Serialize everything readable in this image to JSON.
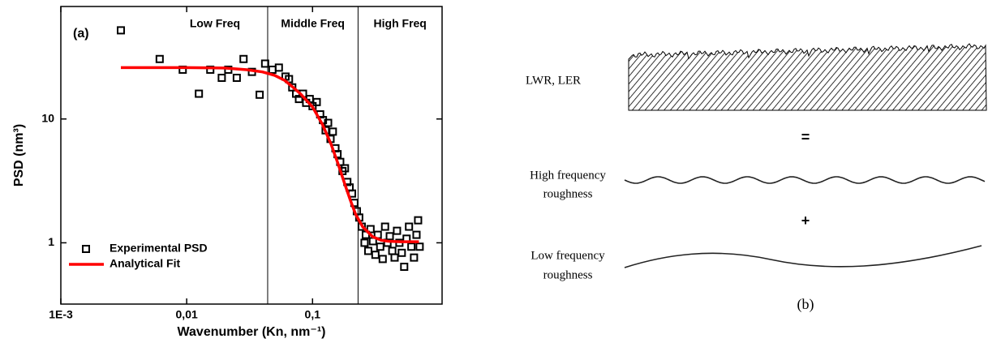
{
  "chart_data": {
    "type": "scatter",
    "panel_label": "(a)",
    "x_label": "Wavenumber (Kn, nm⁻¹)",
    "y_label": "PSD (nm³)",
    "xscale": "log",
    "yscale": "log",
    "xlim": [
      0.001,
      1.07
    ],
    "ylim": [
      0.32,
      81
    ],
    "xticks": [
      {
        "value": 0.001,
        "label": "1E-3"
      },
      {
        "value": 0.01,
        "label": "0,01"
      },
      {
        "value": 0.1,
        "label": "0,1"
      }
    ],
    "yticks": [
      1,
      10
    ],
    "region_boundaries": [
      0.044,
      0.23
    ],
    "region_labels": [
      "Low Freq",
      "Middle Freq",
      "High Freq"
    ],
    "legend": "lower left",
    "series": [
      {
        "name": "Experimental PSD",
        "type": "scatter",
        "color": "#000000",
        "x": [
          0.003,
          0.0061,
          0.0093,
          0.0125,
          0.0154,
          0.019,
          0.0214,
          0.025,
          0.0283,
          0.033,
          0.038,
          0.042,
          0.048,
          0.054,
          0.061,
          0.065,
          0.069,
          0.074,
          0.078,
          0.084,
          0.089,
          0.095,
          0.1,
          0.108,
          0.115,
          0.121,
          0.127,
          0.133,
          0.139,
          0.145,
          0.152,
          0.158,
          0.166,
          0.173,
          0.181,
          0.189,
          0.197,
          0.206,
          0.215,
          0.225,
          0.235,
          0.246,
          0.259,
          0.265,
          0.277,
          0.289,
          0.302,
          0.316,
          0.33,
          0.345,
          0.361,
          0.377,
          0.394,
          0.411,
          0.43,
          0.449,
          0.469,
          0.49,
          0.512,
          0.535,
          0.559,
          0.584,
          0.61,
          0.64,
          0.67,
          0.69,
          0.71
        ],
        "values": [
          52,
          30.5,
          25,
          16,
          25,
          21.5,
          25,
          21.5,
          30.5,
          24,
          15.7,
          28,
          25,
          26,
          22,
          21,
          18,
          16,
          14.5,
          16,
          13.5,
          14.5,
          12.7,
          13.7,
          10.9,
          9.8,
          8.1,
          9.3,
          6.9,
          7.9,
          5.8,
          5.2,
          4.5,
          3.8,
          4.0,
          3.1,
          2.8,
          2.5,
          2.1,
          1.8,
          1.6,
          1.35,
          1.0,
          1.16,
          0.86,
          1.29,
          1.03,
          0.8,
          1.16,
          0.93,
          0.74,
          1.35,
          1.0,
          1.13,
          0.86,
          0.76,
          1.25,
          1.0,
          0.83,
          0.64,
          1.08,
          1.35,
          0.93,
          0.76,
          1.16,
          1.52,
          0.93
        ]
      },
      {
        "name": "Analytical Fit",
        "type": "line",
        "color": "#ff0000",
        "x": [
          0.003,
          0.01,
          0.02,
          0.03,
          0.04,
          0.05,
          0.06,
          0.07,
          0.08,
          0.1,
          0.12,
          0.14,
          0.16,
          0.18,
          0.2,
          0.22,
          0.25,
          0.3,
          0.35,
          0.4,
          0.5,
          0.6,
          0.7
        ],
        "values": [
          26,
          26,
          25.8,
          25,
          24,
          22.5,
          20.5,
          18,
          16,
          12.5,
          9,
          6.3,
          4.3,
          3,
          2.2,
          1.7,
          1.35,
          1.12,
          1.05,
          1.03,
          1.02,
          1.02,
          1.02
        ]
      }
    ]
  },
  "diagram": {
    "total_label": "LWR, LER",
    "equals": "=",
    "high_label": [
      "High frequency",
      "roughness"
    ],
    "plus": "+",
    "low_label": [
      "Low frequency",
      "roughness"
    ],
    "panel_label": "(b)"
  }
}
